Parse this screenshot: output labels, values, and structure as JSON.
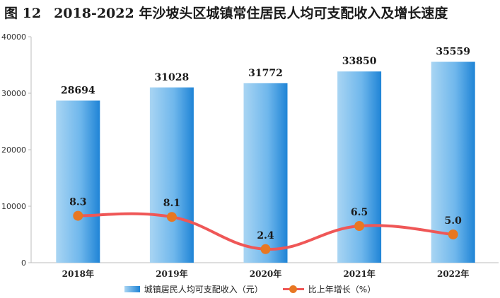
{
  "title": {
    "number": "图 12",
    "text": "2018-2022 年沙坡头区城镇常住居民人均可支配收入及增长速度"
  },
  "chart_data": {
    "type": "bar",
    "categories": [
      "2018年",
      "2019年",
      "2020年",
      "2021年",
      "2022年"
    ],
    "series": [
      {
        "name": "城镇居民人均可支配收入（元）",
        "type": "bar",
        "values": [
          28694,
          31028,
          31772,
          33850,
          35559
        ],
        "labels": [
          "28694",
          "31028",
          "31772",
          "33850",
          "35559"
        ]
      },
      {
        "name": "比上年增长（%）",
        "type": "line",
        "values": [
          8.3,
          8.1,
          2.4,
          6.5,
          5.0
        ],
        "labels": [
          "8.3",
          "8.1",
          "2.4",
          "6.5",
          "5.0"
        ]
      }
    ],
    "ylim": [
      0,
      40000
    ],
    "yticks": [
      "0",
      "10000",
      "20000",
      "30000",
      "40000"
    ],
    "legend": "bottom",
    "grid": false
  },
  "colors": {
    "bar_light": "#a9d5f3",
    "bar_dark": "#1f84d6",
    "line": "#ef5757",
    "marker": "#e87722"
  }
}
